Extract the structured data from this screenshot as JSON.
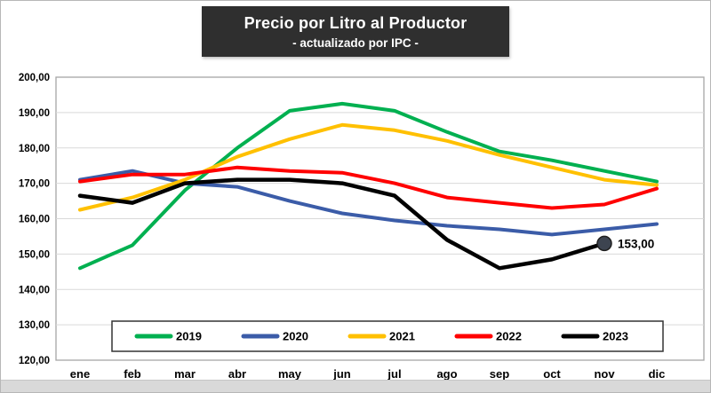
{
  "title": "Precio por Litro al Productor",
  "subtitle": "- actualizado por IPC -",
  "chart_data": {
    "type": "line",
    "title": "Precio por Litro al Productor",
    "subtitle": "- actualizado por IPC -",
    "xlabel": "",
    "ylabel": "",
    "grid": true,
    "legend_position": "bottom-inside",
    "ylim": [
      120,
      200
    ],
    "ytick_step": 10,
    "y_tick_labels": [
      "200,00",
      "190,00",
      "180,00",
      "170,00",
      "160,00",
      "150,00",
      "140,00",
      "130,00",
      "120,00"
    ],
    "categories": [
      "ene",
      "feb",
      "mar",
      "abr",
      "may",
      "jun",
      "jul",
      "ago",
      "sep",
      "oct",
      "nov",
      "dic"
    ],
    "series": [
      {
        "name": "2019",
        "color": "#00B050",
        "values": [
          146,
          152.5,
          168,
          180,
          190.5,
          192.5,
          190.5,
          184.5,
          179,
          176.5,
          173.5,
          170.5
        ]
      },
      {
        "name": "2020",
        "color": "#3B5CA8",
        "values": [
          171,
          173.5,
          170,
          169,
          165,
          161.5,
          159.5,
          158,
          157,
          155.5,
          157,
          158.5
        ]
      },
      {
        "name": "2021",
        "color": "#FFC000",
        "values": [
          162.5,
          166,
          171,
          177.5,
          182.5,
          186.5,
          185,
          182,
          178,
          174.5,
          171,
          169.5
        ]
      },
      {
        "name": "2022",
        "color": "#FF0000",
        "values": [
          170.5,
          172.5,
          172.5,
          174.5,
          173.5,
          173,
          170,
          166,
          164.5,
          163,
          164,
          168.5
        ]
      },
      {
        "name": "2023",
        "color": "#000000",
        "values": [
          166.5,
          164.5,
          170,
          171,
          171,
          170,
          166.5,
          154,
          146,
          148.5,
          153,
          null
        ]
      }
    ],
    "annotation": {
      "text": "153,00",
      "series": "2023",
      "month_index": 10,
      "value": 153
    }
  },
  "colors": {
    "title_box_bg": "#2f2f2f",
    "title_text": "#ffffff",
    "grid": "#d9d9d9",
    "plot_border": "#a6a6a6",
    "axis_text": "#000000"
  }
}
